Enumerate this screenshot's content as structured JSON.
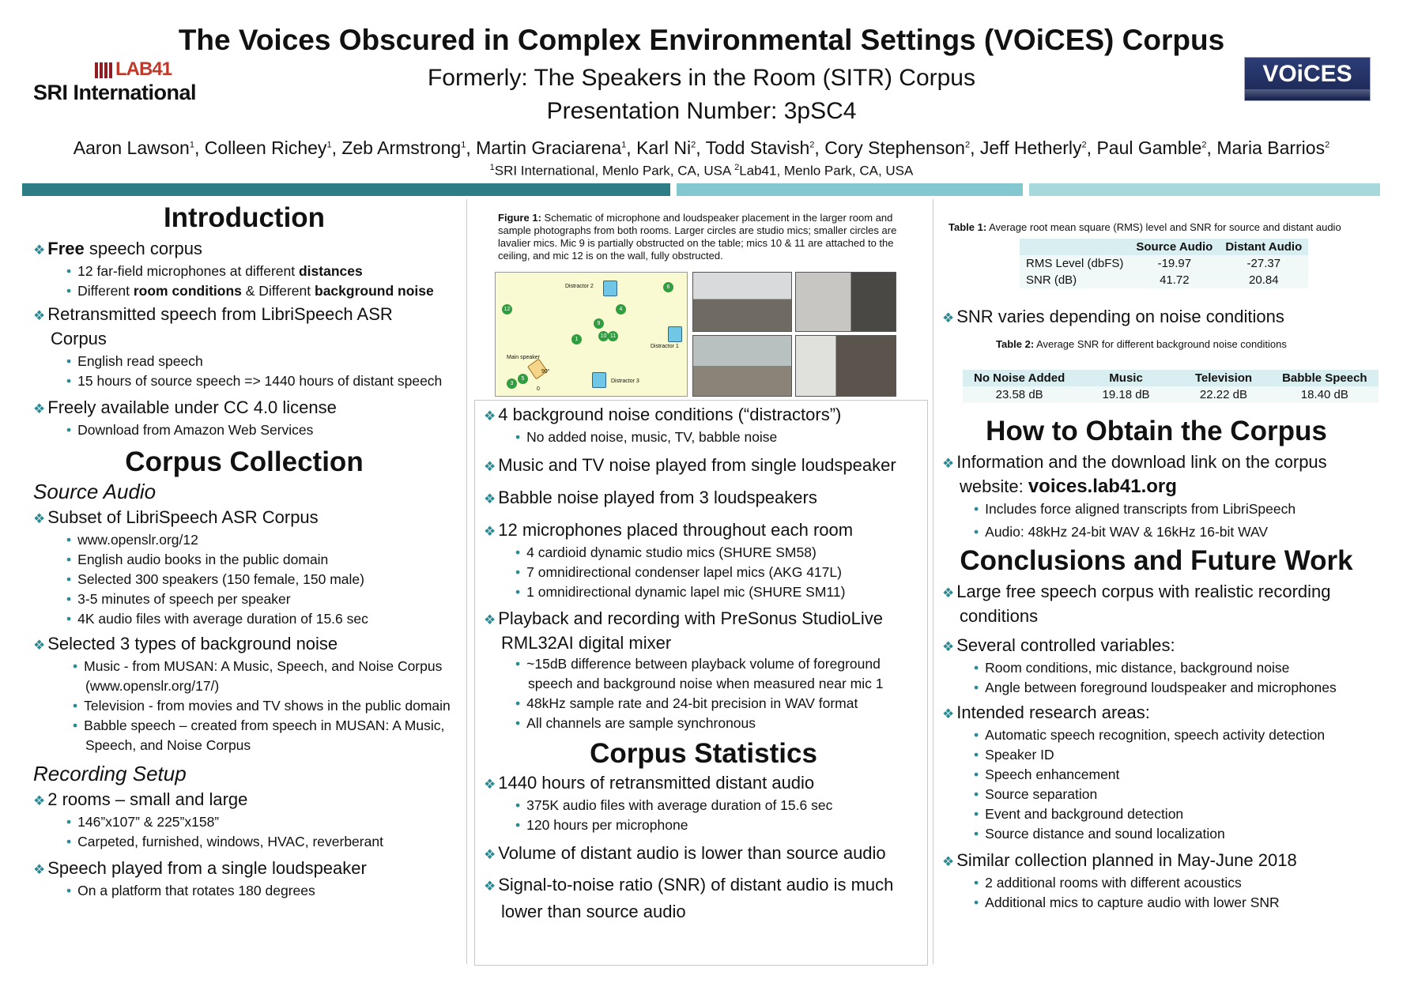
{
  "header": {
    "title": "The Voices Obscured in Complex Environmental Settings (VOiCES) Corpus",
    "subtitle": "Formerly: The Speakers in the Room (SITR) Corpus",
    "presentation": "Presentation Number: 3pSC4",
    "authors": [
      {
        "name": "Aaron Lawson",
        "sup": "1"
      },
      {
        "name": "Colleen Richey",
        "sup": "1"
      },
      {
        "name": "Zeb Armstrong",
        "sup": "1"
      },
      {
        "name": "Martin Graciarena",
        "sup": "1"
      },
      {
        "name": "Karl Ni",
        "sup": "2"
      },
      {
        "name": "Todd Stavish",
        "sup": "2"
      },
      {
        "name": "Cory Stephenson",
        "sup": "2"
      },
      {
        "name": "Jeff Hetherly",
        "sup": "2"
      },
      {
        "name": "Paul Gamble",
        "sup": "2"
      },
      {
        "name": "Maria Barrios",
        "sup": "2"
      }
    ],
    "affil_1_sup": "1",
    "affil_1": "SRI International, Menlo Park, CA, USA ",
    "affil_2_sup": "2",
    "affil_2": "Lab41, Menlo Park, CA, USA",
    "logo_lab41": "LAB41",
    "logo_sri": "SRI International",
    "logo_voices": "VOiCES"
  },
  "col1": {
    "intro_title": "Introduction",
    "intro_b1_bold": "Free",
    "intro_b1_rest": " speech corpus",
    "intro_b1_s1_a": "12 far-field microphones at different ",
    "intro_b1_s1_b": "distances",
    "intro_b1_s2_a": "Different ",
    "intro_b1_s2_b": "room conditions",
    "intro_b1_s2_c": " & Different ",
    "intro_b1_s2_d": "background noise",
    "intro_b2": "Retransmitted speech from LibriSpeech ASR Corpus",
    "intro_b2_s1": "English read speech",
    "intro_b2_s2": "15 hours of source speech => 1440 hours of distant speech",
    "intro_b3": "Freely available under CC 4.0 license",
    "intro_b3_s1": "Download from Amazon Web Services",
    "cc_title": "Corpus Collection",
    "src_title": "Source Audio",
    "src_b1": "Subset of LibriSpeech ASR Corpus",
    "src_b1_s": [
      "www.openslr.org/12",
      "English audio books in the public domain",
      "Selected 300 speakers (150 female, 150 male)",
      "3-5 minutes of speech per speaker",
      "4K audio files with average duration of 15.6 sec"
    ],
    "src_b2": "Selected 3 types of background noise",
    "src_b2_s1": "Music -  from MUSAN: A Music, Speech, and Noise Corpus (www.openslr.org/17/)",
    "src_b2_s2": "Television -  from movies and TV shows in the public domain",
    "src_b2_s3": "Babble speech – created from speech in MUSAN: A Music, Speech, and Noise Corpus",
    "rec_title": "Recording Setup",
    "rec_b1": "2 rooms – small and large",
    "rec_b1_s1": "146”x107” & 225”x158”",
    "rec_b1_s2": "Carpeted, furnished, windows, HVAC, reverberant",
    "rec_b2": "Speech played from a single loudspeaker",
    "rec_b2_s1": "On a platform that rotates 180 degrees"
  },
  "col2": {
    "fig_label": "Figure 1:",
    "fig_caption": " Schematic of microphone and loudspeaker placement in the larger room and sample photographs from both rooms. Larger circles are studio mics; smaller circles are lavalier mics. Mic 9 is partially obstructed on the table; mics 10 & 11 are attached to the ceiling, and mic 12 is on the wall, fully obstructed.",
    "fig_labels": {
      "d2": "Distractor 2",
      "d1": "Distractor 1",
      "d3": "Distractor 3",
      "main": "Main speaker",
      "deg": "90°",
      "zero": "0"
    },
    "b1": "4 background noise conditions (“distractors”)",
    "b1_s1": "No added noise, music, TV, babble noise",
    "b2": "Music and TV noise played from single loudspeaker",
    "b3": "Babble noise played from 3 loudspeakers",
    "b4": "12 microphones placed throughout each room",
    "b4_s": [
      "4 cardioid dynamic studio mics (SHURE SM58)",
      "7 omnidirectional condenser lapel mics (AKG 417L)",
      "1 omnidirectional dynamic lapel mic (SHURE SM11)"
    ],
    "b5": "Playback and recording with PreSonus StudioLive RML32AI digital mixer",
    "b5_s1": "~15dB difference between playback volume of foreground speech and background noise when measured near mic 1",
    "b5_s2": "48kHz sample rate and 24-bit precision in WAV format",
    "b5_s3": "All channels are sample synchronous",
    "stats_title": "Corpus Statistics",
    "s1": "1440 hours of retransmitted distant audio",
    "s1_s1": "375K audio files with average duration of 15.6 sec",
    "s1_s2": "120 hours per microphone",
    "s2": "Volume of distant audio is lower than source audio",
    "s3": "Signal-to-noise ratio (SNR) of distant audio is much lower than source audio"
  },
  "col3": {
    "t1_label": "Table 1:",
    "t1_caption": " Average root mean square (RMS) level and SNR for source and distant audio",
    "t1_headers": [
      "",
      "Source Audio",
      "Distant Audio"
    ],
    "t1_rows": [
      [
        "RMS Level (dbFS)",
        "-19.97",
        "-27.37"
      ],
      [
        "SNR (dB)",
        "41.72",
        "20.84"
      ]
    ],
    "snr_bullet": "SNR varies depending on noise conditions",
    "t2_label": "Table 2:",
    "t2_caption": " Average SNR for different background noise conditions",
    "t2_headers": [
      "No Noise Added",
      "Music",
      "Television",
      "Babble Speech"
    ],
    "t2_values": [
      "23.58 dB",
      "19.18 dB",
      "22.22 dB",
      "18.40 dB"
    ],
    "obtain_title": "How to Obtain the Corpus",
    "obtain_b1_a": "Information and the download link on the corpus website: ",
    "obtain_b1_url": "voices.lab41.org",
    "obtain_s1": "Includes force aligned transcripts from LibriSpeech",
    "obtain_s2": "Audio:  48kHz 24-bit WAV & 16kHz 16-bit WAV",
    "concl_title": "Conclusions and Future Work",
    "c1": "Large free speech corpus with realistic recording conditions",
    "c2": "Several controlled variables:",
    "c2_s": [
      "Room conditions, mic distance, background noise",
      "Angle between foreground loudspeaker and microphones"
    ],
    "c3": "Intended research areas:",
    "c3_s": [
      "Automatic speech recognition, speech activity detection",
      "Speaker ID",
      "Speech enhancement",
      "Source separation",
      "Event and background detection",
      "Source distance and sound localization"
    ],
    "c4": "Similar collection planned in May-June 2018",
    "c4_s": [
      "2 additional rooms with different acoustics",
      "Additional mics to capture audio with lower SNR"
    ]
  },
  "colors": {
    "accent": "#2a8a94",
    "bar_dark": "#2c7d86",
    "bar_mid": "#84c8cf",
    "bar_light": "#a6d8dc"
  }
}
